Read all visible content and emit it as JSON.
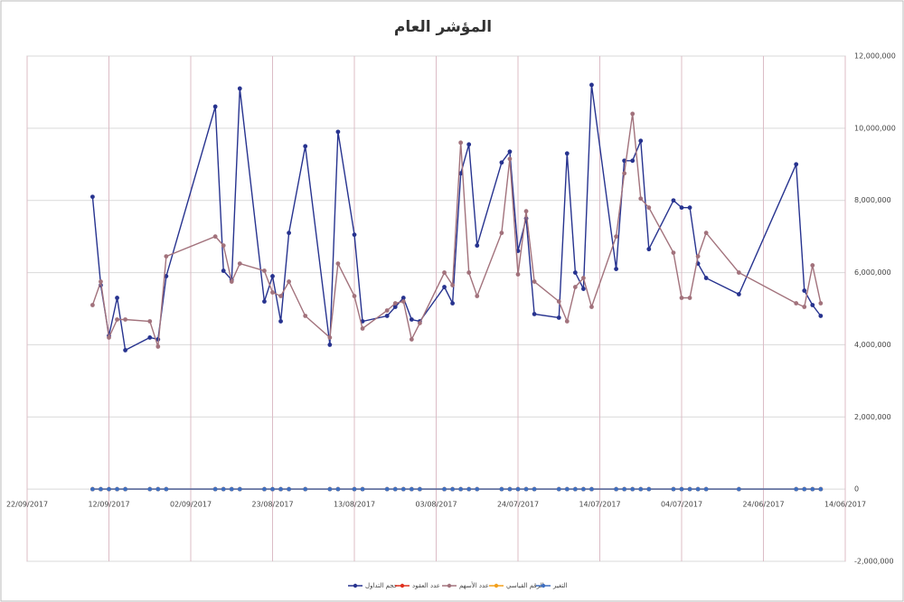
{
  "chart_data": {
    "type": "line",
    "title": "المؤشر العام",
    "x": [
      "2017-09-14",
      "2017-09-13",
      "2017-09-12",
      "2017-09-11",
      "2017-09-10",
      "2017-09-07",
      "2017-09-06",
      "2017-09-05",
      "2017-08-30",
      "2017-08-29",
      "2017-08-28",
      "2017-08-27",
      "2017-08-24",
      "2017-08-23",
      "2017-08-22",
      "2017-08-21",
      "2017-08-19",
      "2017-08-16",
      "2017-08-15",
      "2017-08-13",
      "2017-08-12",
      "2017-08-09",
      "2017-08-08",
      "2017-08-07",
      "2017-08-06",
      "2017-08-05",
      "2017-08-02",
      "2017-08-01",
      "2017-07-31",
      "2017-07-30",
      "2017-07-29",
      "2017-07-26",
      "2017-07-25",
      "2017-07-24",
      "2017-07-23",
      "2017-07-22",
      "2017-07-19",
      "2017-07-18",
      "2017-07-17",
      "2017-07-16",
      "2017-07-15",
      "2017-07-12",
      "2017-07-11",
      "2017-07-10",
      "2017-07-09",
      "2017-07-08",
      "2017-07-05",
      "2017-07-04",
      "2017-07-03",
      "2017-07-02",
      "2017-07-01",
      "2017-06-27",
      "2017-06-20",
      "2017-06-19",
      "2017-06-18",
      "2017-06-17"
    ],
    "series": [
      {
        "name": "حجم التداول",
        "color": "#27338f",
        "values": [
          8100000,
          5650000,
          4250000,
          5300000,
          3850000,
          4200000,
          4150000,
          5900000,
          10600000,
          6050000,
          5800000,
          11100000,
          5200000,
          5900000,
          4650000,
          7100000,
          9500000,
          4000000,
          9900000,
          7050000,
          4650000,
          4800000,
          5050000,
          5300000,
          4700000,
          4650000,
          5600000,
          5150000,
          8750000,
          9550000,
          6750000,
          9050000,
          9350000,
          6600000,
          7500000,
          4850000,
          4750000,
          9300000,
          6000000,
          5550000,
          11200000,
          6100000,
          9100000,
          9100000,
          9650000,
          6650000,
          8000000,
          7800000,
          7800000,
          6250000,
          5850000,
          5400000,
          9000000,
          5500000,
          5100000,
          4800000
        ]
      },
      {
        "name": "عدد العقود",
        "color": "#e0301e",
        "values": [
          0,
          0,
          0,
          0,
          0,
          0,
          0,
          0,
          0,
          0,
          0,
          0,
          0,
          0,
          0,
          0,
          0,
          0,
          0,
          0,
          0,
          0,
          0,
          0,
          0,
          0,
          0,
          0,
          0,
          0,
          0,
          0,
          0,
          0,
          0,
          0,
          0,
          0,
          0,
          0,
          0,
          0,
          0,
          0,
          0,
          0,
          0,
          0,
          0,
          0,
          0,
          0,
          0,
          0,
          0,
          0
        ]
      },
      {
        "name": "عدد الأسهم",
        "color": "#a2727c",
        "values": [
          5100000,
          5750000,
          4200000,
          4700000,
          4700000,
          4650000,
          3950000,
          6450000,
          7000000,
          6750000,
          5750000,
          6250000,
          6050000,
          5450000,
          5350000,
          5750000,
          4800000,
          4200000,
          6250000,
          5350000,
          4450000,
          4950000,
          5150000,
          5200000,
          4150000,
          4600000,
          6000000,
          5650000,
          9600000,
          6000000,
          5350000,
          7100000,
          9150000,
          5950000,
          7700000,
          5750000,
          5200000,
          4650000,
          5600000,
          5850000,
          5050000,
          7000000,
          8750000,
          10400000,
          8050000,
          7800000,
          6550000,
          5300000,
          5300000,
          6450000,
          7100000,
          6000000,
          5150000,
          5050000,
          6200000,
          5150000
        ]
      },
      {
        "name": "الرقم القياسي",
        "color": "#f2a01c",
        "values": [
          0,
          0,
          0,
          0,
          0,
          0,
          0,
          0,
          0,
          0,
          0,
          0,
          0,
          0,
          0,
          0,
          0,
          0,
          0,
          0,
          0,
          0,
          0,
          0,
          0,
          0,
          0,
          0,
          0,
          0,
          0,
          0,
          0,
          0,
          0,
          0,
          0,
          0,
          0,
          0,
          0,
          0,
          0,
          0,
          0,
          0,
          0,
          0,
          0,
          0,
          0,
          0,
          0,
          0,
          0,
          0
        ]
      },
      {
        "name": "التغير",
        "color": "#3f6fc0",
        "values": [
          0,
          0,
          0,
          0,
          0,
          0,
          0,
          0,
          0,
          0,
          0,
          0,
          0,
          0,
          0,
          0,
          0,
          0,
          0,
          0,
          0,
          0,
          0,
          0,
          0,
          0,
          0,
          0,
          0,
          0,
          0,
          0,
          0,
          0,
          0,
          0,
          0,
          0,
          0,
          0,
          0,
          0,
          0,
          0,
          0,
          0,
          0,
          0,
          0,
          0,
          0,
          0,
          0,
          0,
          0,
          0
        ]
      }
    ],
    "xlim": [
      "2017-09-22",
      "2017-06-14"
    ],
    "xticks": [
      {
        "value": "2017-09-22",
        "label": "22/09/2017"
      },
      {
        "value": "2017-09-12",
        "label": "12/09/2017"
      },
      {
        "value": "2017-09-02",
        "label": "02/09/2017"
      },
      {
        "value": "2017-08-23",
        "label": "23/08/2017"
      },
      {
        "value": "2017-08-13",
        "label": "13/08/2017"
      },
      {
        "value": "2017-08-03",
        "label": "03/08/2017"
      },
      {
        "value": "2017-07-24",
        "label": "24/07/2017"
      },
      {
        "value": "2017-07-14",
        "label": "14/07/2017"
      },
      {
        "value": "2017-07-04",
        "label": "04/07/2017"
      },
      {
        "value": "2017-06-24",
        "label": "24/06/2017"
      },
      {
        "value": "2017-06-14",
        "label": "14/06/2017"
      }
    ],
    "ylim": [
      -2000000,
      12000000
    ],
    "yticks": [
      {
        "value": -2000000,
        "label": "-2,000,000"
      },
      0,
      {
        "value": 2000000,
        "label": "2,000,000"
      },
      {
        "value": 4000000,
        "label": "4,000,000"
      },
      {
        "value": 6000000,
        "label": "6,000,000"
      },
      {
        "value": 8000000,
        "label": "8,000,000"
      },
      {
        "value": 10000000,
        "label": "10,000,000"
      },
      {
        "value": 12000000,
        "label": "12,000,000"
      }
    ],
    "grid": true,
    "legend": "bottom"
  }
}
